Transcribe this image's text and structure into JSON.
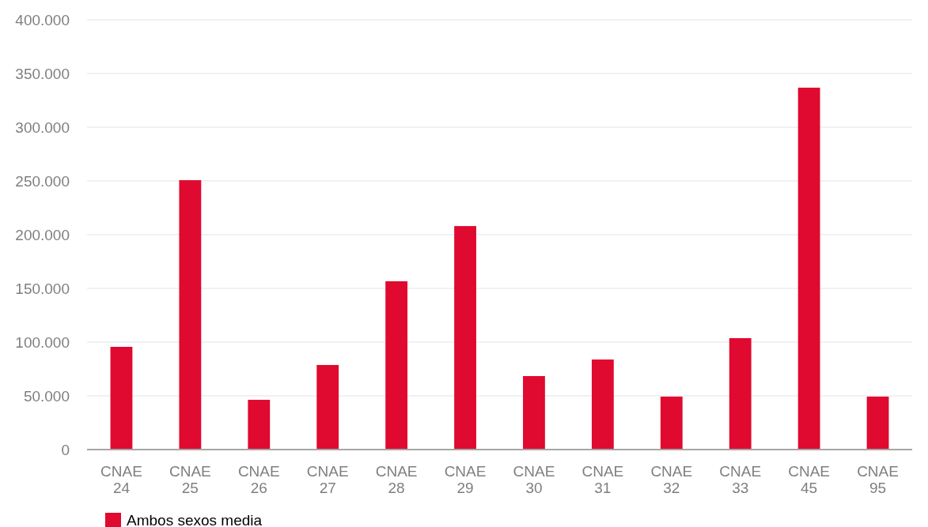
{
  "chart_data": {
    "type": "bar",
    "categories": [
      "CNAE 24",
      "CNAE 25",
      "CNAE 26",
      "CNAE 27",
      "CNAE 28",
      "CNAE 29",
      "CNAE 30",
      "CNAE 31",
      "CNAE 32",
      "CNAE 33",
      "CNAE 45",
      "CNAE 95"
    ],
    "series": [
      {
        "name": "Ambos sexos media",
        "color": "#e0092f",
        "values": [
          95600,
          250700,
          46300,
          78700,
          156600,
          208000,
          68400,
          83800,
          49300,
          103700,
          336800,
          49300
        ]
      }
    ],
    "ylim": [
      0,
      400000
    ],
    "yticks": [
      {
        "value": 0,
        "label": "0"
      },
      {
        "value": 50000,
        "label": "50.000"
      },
      {
        "value": 100000,
        "label": "100.000"
      },
      {
        "value": 150000,
        "label": "150.000"
      },
      {
        "value": 200000,
        "label": "200.000"
      },
      {
        "value": 250000,
        "label": "250.000"
      },
      {
        "value": 300000,
        "label": "300.000"
      },
      {
        "value": 350000,
        "label": "350.000"
      },
      {
        "value": 400000,
        "label": "400.000"
      }
    ],
    "grid": "y",
    "legend": "bottom"
  }
}
